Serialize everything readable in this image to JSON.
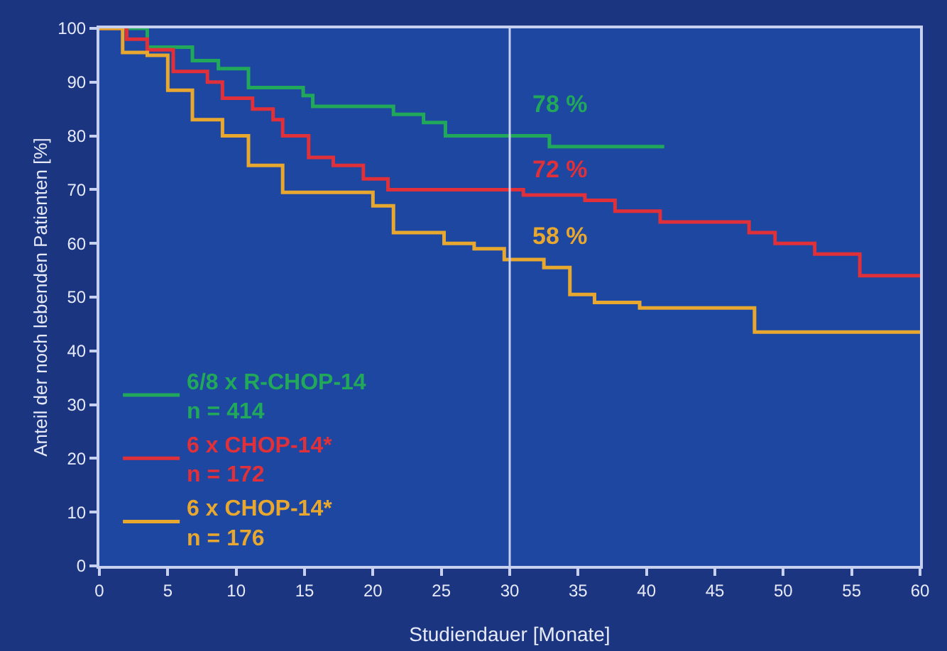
{
  "chart_data": {
    "type": "step",
    "xlabel": "Studiendauer [Monate]",
    "ylabel": "Anteil der noch lebenden Patienten [%]",
    "xlim": [
      0,
      60
    ],
    "xticks": [
      0,
      5,
      10,
      15,
      20,
      25,
      30,
      35,
      40,
      45,
      50,
      55,
      60
    ],
    "ylim": [
      0,
      100
    ],
    "yticks": [
      0,
      10,
      20,
      30,
      40,
      50,
      60,
      70,
      80,
      90,
      100
    ],
    "grid": false,
    "legend": "bottom left",
    "marker": "none",
    "line_style": "solid",
    "ref_lines": [
      {
        "axis": "x",
        "value": 30,
        "color": "#c8d0f0"
      }
    ],
    "annotations": [
      "78 %",
      "72 %",
      "58 %"
    ],
    "series": [
      {
        "name": "6/8 x R-CHOP-14\nn = 414",
        "color": "#22a85a",
        "x": [
          0,
          3.5,
          6.8,
          8.7,
          10.9,
          14.9,
          15.6,
          21.5,
          23.7,
          25.3,
          32.9,
          41.3
        ],
        "values": [
          100,
          96.5,
          94,
          92.5,
          89,
          87.5,
          85.5,
          84,
          82.5,
          80,
          78,
          78
        ]
      },
      {
        "name": "6 x CHOP-14*\nn = 172",
        "color": "#e0303a",
        "x": [
          0,
          2,
          3.5,
          5.4,
          7.9,
          9,
          11.2,
          12.7,
          13.4,
          15.3,
          17.1,
          19.3,
          21.1,
          31,
          35.5,
          37.7,
          41,
          47.5,
          49.4,
          52.3,
          55.6,
          60
        ],
        "values": [
          100,
          98,
          96,
          92,
          90,
          87,
          85,
          83,
          80,
          76,
          74.5,
          72,
          70,
          69,
          68,
          66,
          64,
          62,
          60,
          58,
          54,
          54
        ]
      },
      {
        "name": "6 x CHOP-14*\nn = 176",
        "color": "#e8a830",
        "x": [
          0,
          1.7,
          3.5,
          5,
          6.8,
          9,
          10.9,
          13.4,
          20,
          21.5,
          25.2,
          27.4,
          29.6,
          32.5,
          34.4,
          36.2,
          39.5,
          47.9,
          60
        ],
        "values": [
          100,
          95.5,
          95,
          88.5,
          83,
          80,
          74.5,
          69.5,
          67,
          62,
          60,
          59,
          57,
          55.5,
          50.5,
          49,
          48,
          43.5,
          43.5
        ]
      }
    ]
  }
}
